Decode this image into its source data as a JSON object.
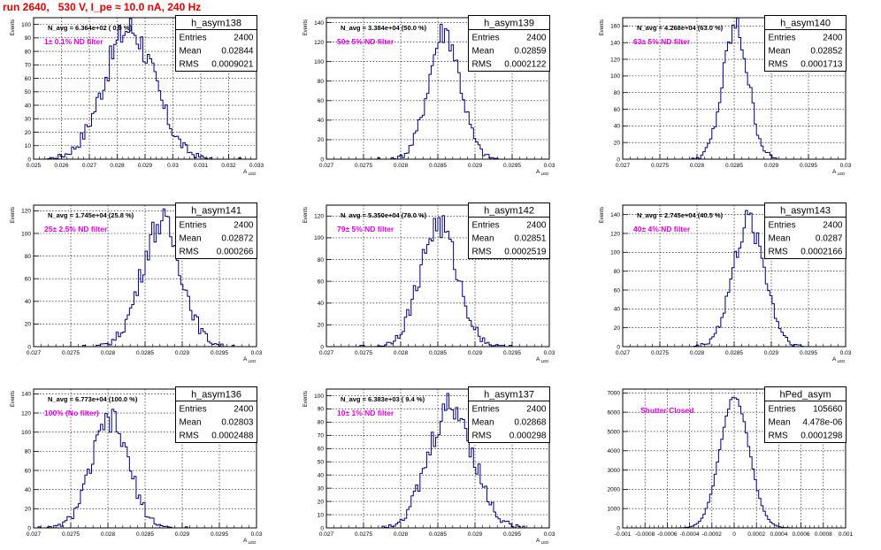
{
  "page_title": "run 2640,   530 V, I_pe ≈ 10.0 nA, 240 Hz",
  "stats_labels": {
    "entries": "Entries",
    "mean": "Mean",
    "rms": "RMS"
  },
  "colors": {
    "histogram": "#000080",
    "title": "#e00000",
    "filter_label": "#e000e0",
    "grid": "#000000"
  },
  "chart_data": [
    {
      "type": "histogram",
      "name": "h_asym138",
      "navg": "N_avg = 6.364e+02 ( 0.9 %)",
      "filter": "1± 0.1% ND filter",
      "entries": "2400",
      "mean": "0.02844",
      "rms": "0.0009021",
      "xlim": [
        0.025,
        0.033
      ],
      "ylim": [
        0,
        105
      ],
      "ylabel": "Events",
      "xlabel": "A_{LED}",
      "xticks": [
        "0.025",
        "0.026",
        "0.027",
        "0.028",
        "0.029",
        "0.03",
        "0.031",
        "0.032",
        "0.033"
      ],
      "xtick_values": [
        0.025,
        0.026,
        0.027,
        0.028,
        0.029,
        0.03,
        0.031,
        0.032,
        0.033
      ],
      "yticks": [
        0,
        10,
        20,
        30,
        40,
        50,
        60,
        70,
        80,
        90,
        100
      ],
      "ytick_labels": [
        "0",
        "10",
        "20",
        "30",
        "40",
        "50",
        "60",
        "70",
        "80",
        "90",
        "100"
      ],
      "gauss_mu": 0.02844,
      "gauss_sigma": 0.0009,
      "gauss_peak": 97,
      "bin_width": 8e-05
    },
    {
      "type": "histogram",
      "name": "h_asym139",
      "navg": "N_avg = 3.384e+04 (50.0 %)",
      "filter": "50± 5% ND filter",
      "entries": "2400",
      "mean": "0.02859",
      "rms": "0.0002122",
      "xlim": [
        0.027,
        0.03
      ],
      "ylim": [
        0,
        145
      ],
      "ylabel": "Events",
      "xlabel": "A_{LED}",
      "xticks": [
        "0.027",
        "0.0275",
        "0.028",
        "0.0285",
        "0.029",
        "0.0295",
        "0.03"
      ],
      "xtick_values": [
        0.027,
        0.0275,
        0.028,
        0.0285,
        0.029,
        0.0295,
        0.03
      ],
      "yticks": [
        0,
        20,
        40,
        60,
        80,
        100,
        120,
        140
      ],
      "ytick_labels": [
        "0",
        "20",
        "40",
        "60",
        "80",
        "100",
        "120",
        "140"
      ],
      "gauss_mu": 0.02859,
      "gauss_sigma": 0.000212,
      "gauss_peak": 132,
      "bin_width": 3e-05
    },
    {
      "type": "histogram",
      "name": "h_asym140",
      "navg": "N_avg = 4.268e+04 (63.0 %)",
      "filter": "63± 5% ND filter",
      "entries": "2400",
      "mean": "0.02852",
      "rms": "0.0001713",
      "xlim": [
        0.027,
        0.03
      ],
      "ylim": [
        0,
        170
      ],
      "ylabel": "Events",
      "xlabel": "A_{LED}",
      "xticks": [
        "0.027",
        "0.0275",
        "0.028",
        "0.0285",
        "0.029",
        "0.0295",
        "0.03"
      ],
      "xtick_values": [
        0.027,
        0.0275,
        0.028,
        0.0285,
        0.029,
        0.0295,
        0.03
      ],
      "yticks": [
        0,
        20,
        40,
        60,
        80,
        100,
        120,
        140,
        160
      ],
      "ytick_labels": [
        "0",
        "20",
        "40",
        "60",
        "80",
        "100",
        "120",
        "140",
        "160"
      ],
      "gauss_mu": 0.02852,
      "gauss_sigma": 0.000171,
      "gauss_peak": 158,
      "bin_width": 3e-05
    },
    {
      "type": "histogram",
      "name": "h_asym141",
      "navg": "N_avg = 1.745e+04 (25.8 %)",
      "filter": "25± 2.5% ND filter",
      "entries": "2400",
      "mean": "0.02872",
      "rms": "0.000266",
      "xlim": [
        0.027,
        0.03
      ],
      "ylim": [
        0,
        125
      ],
      "ylabel": "Events",
      "xlabel": "A_{LED}",
      "xticks": [
        "0.027",
        "0.0275",
        "0.028",
        "0.0285",
        "0.029",
        "0.0295",
        "0.03"
      ],
      "xtick_values": [
        0.027,
        0.0275,
        0.028,
        0.0285,
        0.029,
        0.0295,
        0.03
      ],
      "yticks": [
        0,
        20,
        40,
        60,
        80,
        100,
        120
      ],
      "ytick_labels": [
        "0",
        "20",
        "40",
        "60",
        "80",
        "100",
        "120"
      ],
      "gauss_mu": 0.02872,
      "gauss_sigma": 0.000266,
      "gauss_peak": 110,
      "bin_width": 3e-05
    },
    {
      "type": "histogram",
      "name": "h_asym142",
      "navg": "N_avg = 5.350e+04 (79.0 %)",
      "filter": "79± 5% ND filter",
      "entries": "2400",
      "mean": "0.02851",
      "rms": "0.0002519",
      "xlim": [
        0.027,
        0.03
      ],
      "ylim": [
        0,
        130
      ],
      "ylabel": "Events",
      "xlabel": "A_{LED}",
      "xticks": [
        "0.027",
        "0.0275",
        "0.028",
        "0.0285",
        "0.029",
        "0.0295",
        "0.03"
      ],
      "xtick_values": [
        0.027,
        0.0275,
        0.028,
        0.0285,
        0.029,
        0.0295,
        0.03
      ],
      "yticks": [
        0,
        20,
        40,
        60,
        80,
        100,
        120
      ],
      "ytick_labels": [
        "0",
        "20",
        "40",
        "60",
        "80",
        "100",
        "120"
      ],
      "gauss_mu": 0.02851,
      "gauss_sigma": 0.000252,
      "gauss_peak": 112,
      "bin_width": 3e-05
    },
    {
      "type": "histogram",
      "name": "h_asym143",
      "navg": "N_avg = 2.745e+04 (40.5 %)",
      "filter": "40± 4% ND filter",
      "entries": "2400",
      "mean": "0.0287",
      "rms": "0.0002166",
      "xlim": [
        0.027,
        0.03
      ],
      "ylim": [
        0,
        150
      ],
      "ylabel": "Events",
      "xlabel": "A_{LED}",
      "xticks": [
        "0.027",
        "0.0275",
        "0.028",
        "0.0285",
        "0.029",
        "0.0295",
        "0.03"
      ],
      "xtick_values": [
        0.027,
        0.0275,
        0.028,
        0.0285,
        0.029,
        0.0295,
        0.03
      ],
      "yticks": [
        0,
        20,
        40,
        60,
        80,
        100,
        120,
        140
      ],
      "ytick_labels": [
        "0",
        "20",
        "40",
        "60",
        "80",
        "100",
        "120",
        "140"
      ],
      "gauss_mu": 0.0287,
      "gauss_sigma": 0.000217,
      "gauss_peak": 132,
      "bin_width": 3e-05
    },
    {
      "type": "histogram",
      "name": "h_asym136",
      "navg": "N_avg = 6.773e+04 (100.0 %)",
      "filter": "100% (No filter)",
      "entries": "2400",
      "mean": "0.02803",
      "rms": "0.0002488",
      "xlim": [
        0.027,
        0.03
      ],
      "ylim": [
        0,
        145
      ],
      "ylabel": "Events",
      "xlabel": "A_{LED}",
      "xticks": [
        "0.027",
        "0.0275",
        "0.028",
        "0.0285",
        "0.029",
        "0.0295",
        "0.03"
      ],
      "xtick_values": [
        0.027,
        0.0275,
        0.028,
        0.0285,
        0.029,
        0.0295,
        0.03
      ],
      "yticks": [
        0,
        20,
        40,
        60,
        80,
        100,
        120,
        140
      ],
      "ytick_labels": [
        "0",
        "20",
        "40",
        "60",
        "80",
        "100",
        "120",
        "140"
      ],
      "gauss_mu": 0.02803,
      "gauss_sigma": 0.000249,
      "gauss_peak": 112,
      "bin_width": 3e-05
    },
    {
      "type": "histogram",
      "name": "h_asym137",
      "navg": "N_avg = 6.383e+03 ( 9.4 %)",
      "filter": "10± 1% ND filter",
      "entries": "2400",
      "mean": "0.02868",
      "rms": "0.000298",
      "xlim": [
        0.027,
        0.03
      ],
      "ylim": [
        0,
        105
      ],
      "ylabel": "Events",
      "xlabel": "A_{LED}",
      "xticks": [
        "0.027",
        "0.0275",
        "0.028",
        "0.0285",
        "0.029",
        "0.0295",
        "0.03"
      ],
      "xtick_values": [
        0.027,
        0.0275,
        0.028,
        0.0285,
        0.029,
        0.0295,
        0.03
      ],
      "yticks": [
        0,
        10,
        20,
        30,
        40,
        50,
        60,
        70,
        80,
        90,
        100
      ],
      "ytick_labels": [
        "0",
        "10",
        "20",
        "30",
        "40",
        "50",
        "60",
        "70",
        "80",
        "90",
        "100"
      ],
      "gauss_mu": 0.02868,
      "gauss_sigma": 0.000298,
      "gauss_peak": 92,
      "bin_width": 3e-05
    },
    {
      "type": "histogram",
      "name": "hPed_asym",
      "navg": "",
      "filter": "Shutter Closed",
      "entries": "105660",
      "mean": "4.478e-06",
      "rms": "0.0001298",
      "xlim": [
        -0.001,
        0.001
      ],
      "ylim": [
        0,
        7200
      ],
      "ylabel": "",
      "xlabel": "",
      "xticks": [
        "-0.001",
        "-0.0008",
        "-0.0006",
        "-0.0004",
        "-0.0002",
        "0",
        "0.0002",
        "0.0004",
        "0.0006",
        "0.0008",
        "0.001"
      ],
      "xtick_values": [
        -0.001,
        -0.0008,
        -0.0006,
        -0.0004,
        -0.0002,
        0,
        0.0002,
        0.0004,
        0.0006,
        0.0008,
        0.001
      ],
      "yticks": [
        0,
        1000,
        2000,
        3000,
        4000,
        5000,
        6000,
        7000
      ],
      "ytick_labels": [
        "0",
        "1000",
        "2000",
        "3000",
        "4000",
        "5000",
        "6000",
        "7000"
      ],
      "gauss_mu": 4.5e-06,
      "gauss_sigma": 0.00013,
      "gauss_peak": 6800,
      "bin_width": 2e-05
    }
  ]
}
